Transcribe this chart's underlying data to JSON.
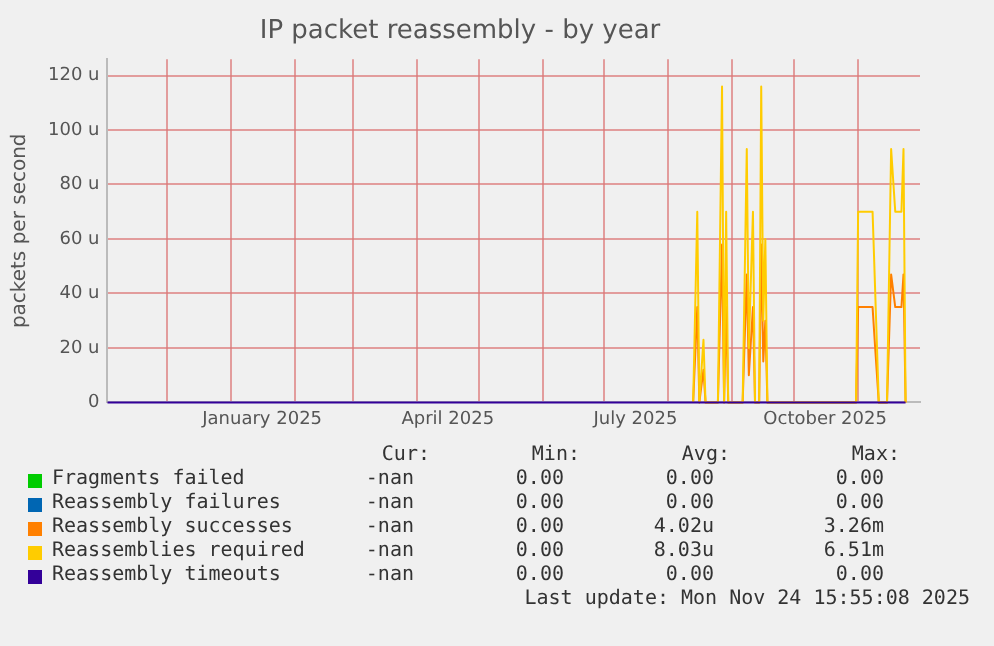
{
  "chart_data": {
    "type": "line",
    "title": "IP packet reassembly - by year",
    "ylabel": "packets per second",
    "xlim": [
      "2024-11-02",
      "2025-12-01"
    ],
    "xticks": [
      {
        "value": "2024-12-01",
        "label": null
      },
      {
        "value": "2025-01-01",
        "label": null
      },
      {
        "value": "2025-01-16",
        "label": "January 2025"
      },
      {
        "value": "2025-02-01",
        "label": null
      },
      {
        "value": "2025-03-01",
        "label": null
      },
      {
        "value": "2025-04-01",
        "label": null
      },
      {
        "value": "2025-04-16",
        "label": "April 2025"
      },
      {
        "value": "2025-05-01",
        "label": null
      },
      {
        "value": "2025-06-01",
        "label": null
      },
      {
        "value": "2025-07-01",
        "label": null
      },
      {
        "value": "2025-07-16",
        "label": "July 2025"
      },
      {
        "value": "2025-08-01",
        "label": null
      },
      {
        "value": "2025-09-01",
        "label": null
      },
      {
        "value": "2025-10-01",
        "label": null
      },
      {
        "value": "2025-10-16",
        "label": "October 2025"
      },
      {
        "value": "2025-11-01",
        "label": null
      }
    ],
    "ylim": [
      0,
      126
    ],
    "yticks": [
      0,
      {
        "value": 20,
        "label": "20 u"
      },
      {
        "value": 40,
        "label": "40 u"
      },
      {
        "value": 60,
        "label": "60 u"
      },
      {
        "value": 80,
        "label": "80 u"
      },
      {
        "value": 100,
        "label": "100 u"
      },
      {
        "value": 120,
        "label": "120 u"
      }
    ],
    "grid": true,
    "legend": "bottom",
    "marker": "none",
    "line_style": "solid",
    "series": [
      {
        "name": "Fragments failed",
        "color": "#00cc00"
      },
      {
        "name": "Reassembly failures",
        "color": "#0066b3"
      },
      {
        "name": "Reassembly successes",
        "color": "#ff8000",
        "x": [
          "2025-08-13",
          "2025-08-15",
          "2025-08-16",
          "2025-08-18",
          "2025-08-19",
          "2025-08-25",
          "2025-08-27",
          "2025-08-28",
          "2025-08-29",
          "2025-08-30",
          "2025-09-06",
          "2025-09-08",
          "2025-09-09",
          "2025-09-11",
          "2025-09-12",
          "2025-09-14",
          "2025-09-15",
          "2025-09-16",
          "2025-09-17",
          "2025-09-18",
          "2025-10-31",
          "2025-11-01",
          "2025-11-08",
          "2025-11-09",
          "2025-11-11",
          "2025-11-15",
          "2025-11-17",
          "2025-11-19",
          "2025-11-22",
          "2025-11-23",
          "2025-11-24"
        ],
        "values": [
          0,
          35,
          0,
          12,
          0,
          0,
          58,
          0,
          35,
          0,
          0,
          47,
          10,
          35,
          0,
          0,
          58,
          15,
          30,
          0,
          0,
          35,
          35,
          23,
          0,
          0,
          47,
          35,
          35,
          47,
          0
        ]
      },
      {
        "name": "Reassemblies required",
        "color": "#ffcc00",
        "x": [
          "2025-08-13",
          "2025-08-15",
          "2025-08-16",
          "2025-08-18",
          "2025-08-19",
          "2025-08-25",
          "2025-08-27",
          "2025-08-28",
          "2025-08-29",
          "2025-08-30",
          "2025-09-06",
          "2025-09-08",
          "2025-09-09",
          "2025-09-11",
          "2025-09-12",
          "2025-09-14",
          "2025-09-15",
          "2025-09-16",
          "2025-09-17",
          "2025-09-18",
          "2025-10-31",
          "2025-11-01",
          "2025-11-08",
          "2025-11-09",
          "2025-11-11",
          "2025-11-15",
          "2025-11-17",
          "2025-11-19",
          "2025-11-22",
          "2025-11-23",
          "2025-11-24"
        ],
        "values": [
          0,
          70,
          0,
          23,
          0,
          0,
          116,
          0,
          70,
          0,
          0,
          93,
          20,
          70,
          0,
          0,
          116,
          30,
          60,
          0,
          0,
          70,
          70,
          47,
          0,
          0,
          93,
          70,
          70,
          93,
          0
        ]
      },
      {
        "name": "Reassembly timeouts",
        "color": "#330099",
        "x": [
          "2024-11-02",
          "2025-11-24"
        ],
        "values": [
          0,
          0
        ]
      }
    ],
    "annotations": [
      "Cur:",
      "Min:",
      "Avg:",
      "Max:",
      "-nan",
      "0.00",
      "0.00",
      "0.00",
      "-nan",
      "0.00",
      "0.00",
      "0.00",
      "-nan",
      "0.00",
      "4.02u",
      "3.26m",
      "-nan",
      "0.00",
      "8.03u",
      "6.51m",
      "-nan",
      "0.00",
      "0.00",
      "0.00",
      "Last update: Mon Nov 24 15:55:08 2025"
    ]
  }
}
